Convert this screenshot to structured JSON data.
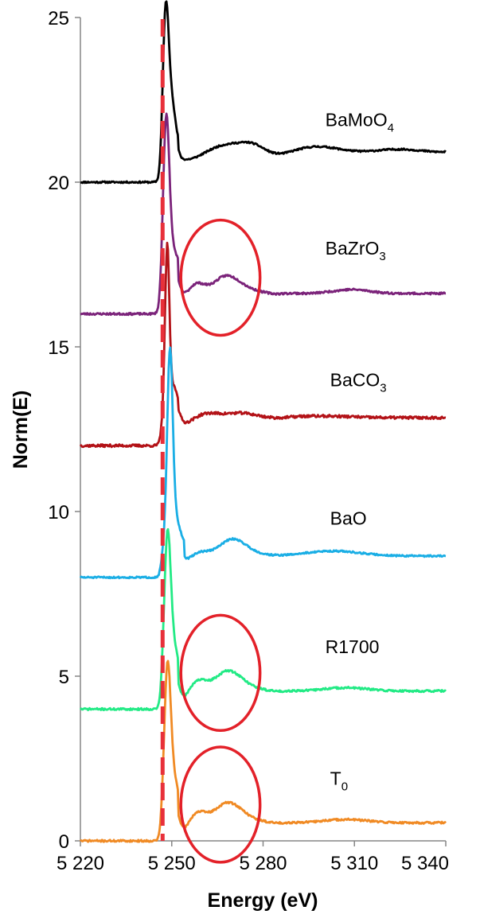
{
  "chart_data": {
    "type": "line",
    "xlabel": "Energy (eV)",
    "ylabel": "Norm(E)",
    "xlim": [
      5220,
      5340
    ],
    "ylim": [
      0,
      25
    ],
    "x_ticks": [
      5220,
      5250,
      5280,
      5310,
      5340
    ],
    "x_tick_labels": [
      "5 220",
      "5 250",
      "5 280",
      "5 310",
      "5 340"
    ],
    "y_ticks": [
      0,
      5,
      10,
      15,
      20,
      25
    ],
    "y_tick_labels": [
      "0",
      "5",
      "10",
      "15",
      "20",
      "25"
    ],
    "grid": false,
    "edge_line": {
      "x": 5247,
      "color": "#e8303a",
      "style": "dashed"
    },
    "series": [
      {
        "name": "BaMoO4",
        "label_main": "BaMoO",
        "label_sub": "4",
        "color": "#000000",
        "offset": 20,
        "shape": "BaMoO4"
      },
      {
        "name": "BaZrO3",
        "label_main": "BaZrO",
        "label_sub": "3",
        "color": "#7b237a",
        "offset": 16,
        "shape": "BaZrO3"
      },
      {
        "name": "BaCO3",
        "label_main": "BaCO",
        "label_sub": "3",
        "color": "#b31217",
        "offset": 12,
        "shape": "BaCO3"
      },
      {
        "name": "BaO",
        "label_main": "BaO",
        "label_sub": "",
        "color": "#1aaee5",
        "offset": 8,
        "shape": "BaO"
      },
      {
        "name": "R1700",
        "label_main": "R1700",
        "label_sub": "",
        "color": "#22ea85",
        "offset": 4,
        "shape": "sample"
      },
      {
        "name": "T0",
        "label_main": "T",
        "label_sub": "0",
        "color": "#f08a24",
        "offset": 0,
        "shape": "sample"
      }
    ],
    "annotations": [
      {
        "type": "ellipse",
        "color": "#e32129",
        "cx": 5266,
        "cy": 17.1,
        "rx": 13,
        "ry": 1.75
      },
      {
        "type": "ellipse",
        "color": "#e32129",
        "cx": 5266,
        "cy": 5.1,
        "rx": 13,
        "ry": 1.75
      },
      {
        "type": "ellipse",
        "color": "#e32129",
        "cx": 5266,
        "cy": 1.1,
        "rx": 13,
        "ry": 1.75
      }
    ]
  }
}
